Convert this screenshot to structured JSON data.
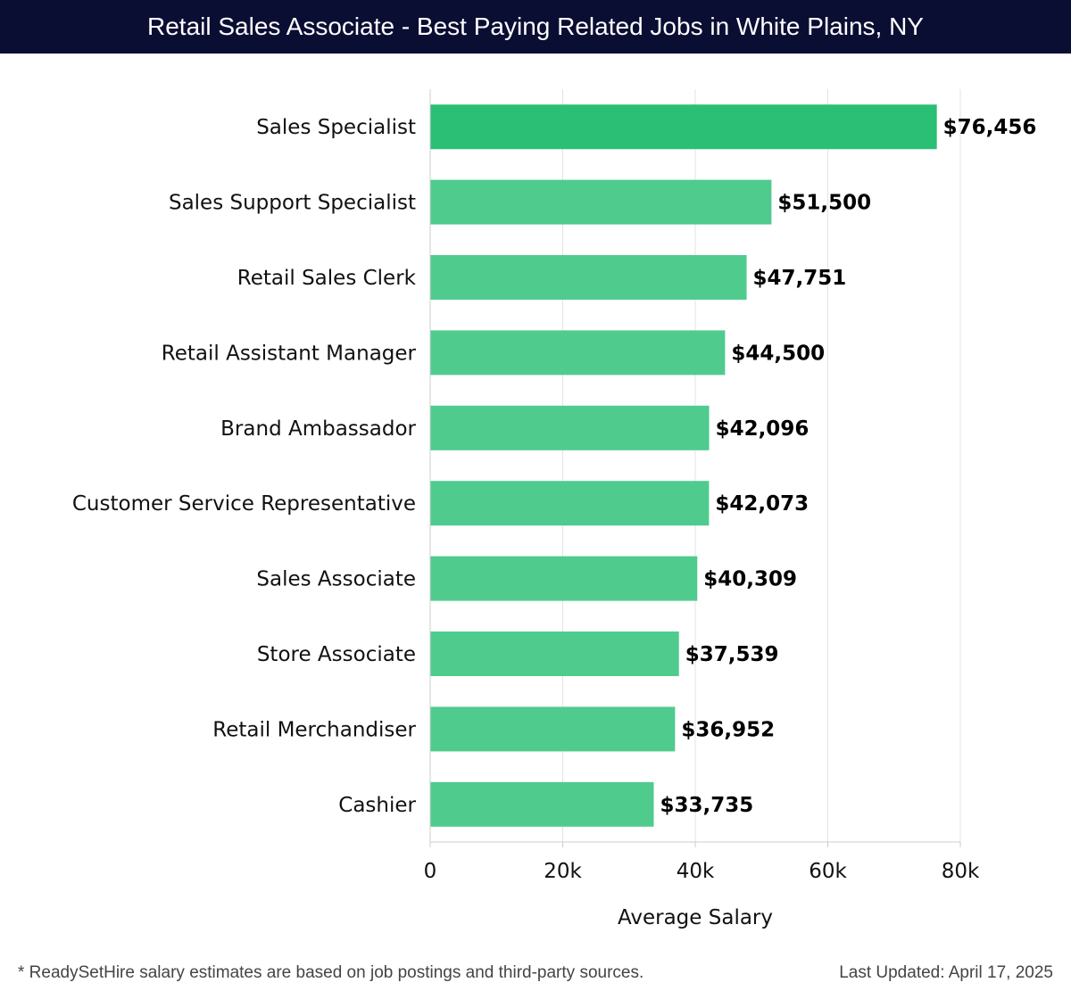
{
  "header": {
    "title": "Retail Sales Associate - Best Paying Related Jobs in White Plains, NY"
  },
  "chart_data": {
    "type": "bar",
    "orientation": "horizontal",
    "categories": [
      "Sales Specialist",
      "Sales Support Specialist",
      "Retail Sales Clerk",
      "Retail Assistant Manager",
      "Brand Ambassador",
      "Customer Service Representative",
      "Sales Associate",
      "Store Associate",
      "Retail Merchandiser",
      "Cashier"
    ],
    "values": [
      76456,
      51500,
      47751,
      44500,
      42096,
      42073,
      40309,
      37539,
      36952,
      33735
    ],
    "value_labels": [
      "$76,456",
      "$51,500",
      "$47,751",
      "$44,500",
      "$42,096",
      "$42,073",
      "$40,309",
      "$37,539",
      "$36,952",
      "$33,735"
    ],
    "xlabel": "Average Salary",
    "ylabel": "",
    "xlim": [
      0,
      80000
    ],
    "xticks": [
      0,
      20000,
      40000,
      60000,
      80000
    ],
    "xtick_labels": [
      "0",
      "20k",
      "40k",
      "60k",
      "80k"
    ],
    "grid": true,
    "colors": {
      "highlight": "#2bbf76",
      "bar": "#4fcb8e"
    }
  },
  "footer": {
    "note": "* ReadySetHire salary estimates are based on job postings and third-party sources.",
    "updated": "Last Updated: April 17, 2025"
  }
}
